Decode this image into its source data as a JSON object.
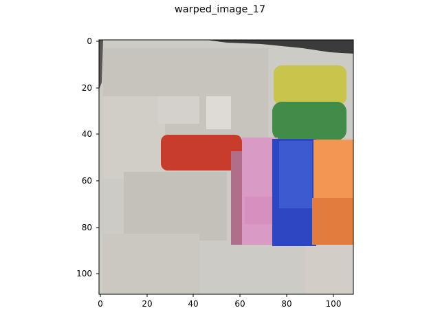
{
  "figure": {
    "title": "warped_image_17",
    "x_ticks": [
      "0",
      "20",
      "40",
      "60",
      "80",
      "100"
    ],
    "y_ticks": [
      "0",
      "20",
      "40",
      "60",
      "80",
      "100"
    ]
  },
  "image": {
    "description_colors": {
      "background_wall": "#cfcdc6",
      "shadow_gray": "#bdb9b2",
      "light_patch": "#dedbd6",
      "dark_corner": "#3b3b3b",
      "yellow_block": "#c9c44b",
      "green_block": "#428c4a",
      "red_block": "#c83c2c",
      "pink_block": "#d99ac6",
      "mauve_shadow": "#b06e8a",
      "blue_block": "#2d46c2",
      "blue_light": "#3d5ad0",
      "orange_light": "#f29652",
      "orange_dark": "#e27c3e"
    }
  }
}
